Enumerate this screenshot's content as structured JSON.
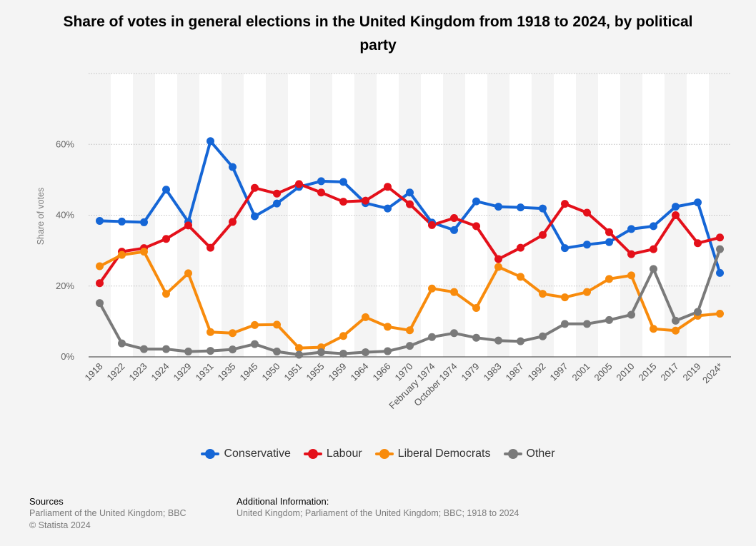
{
  "title": "Share of votes in general elections in the United Kingdom from 1918 to 2024, by political party",
  "footer": {
    "sources_heading": "Sources",
    "sources_line1": "Parliament of the United Kingdom; BBC",
    "sources_line2": "© Statista 2024",
    "additional_heading": "Additional Information:",
    "additional_text": "United Kingdom; Parliament of the United Kingdom; BBC; 1918 to 2024"
  },
  "chart_data": {
    "type": "line",
    "ylabel": "Share of votes",
    "yticks": [
      "0%",
      "20%",
      "40%",
      "60%"
    ],
    "ylim": [
      0,
      80
    ],
    "grid": true,
    "legend_position": "bottom",
    "categories": [
      "1918",
      "1922",
      "1923",
      "1924",
      "1929",
      "1931",
      "1935",
      "1945",
      "1950",
      "1951",
      "1955",
      "1959",
      "1964",
      "1966",
      "1970",
      "February 1974",
      "October 1974",
      "1979",
      "1983",
      "1987",
      "1992",
      "1997",
      "2001",
      "2005",
      "2010",
      "2015",
      "2017",
      "2019",
      "2024*"
    ],
    "series": [
      {
        "name": "Conservative",
        "color": "#1566d6",
        "values": [
          38.4,
          38.2,
          38.0,
          47.2,
          38.1,
          60.9,
          53.6,
          39.7,
          43.3,
          48.0,
          49.6,
          49.4,
          43.4,
          41.9,
          46.4,
          37.9,
          35.8,
          43.9,
          42.4,
          42.2,
          41.9,
          30.7,
          31.7,
          32.4,
          36.1,
          36.9,
          42.4,
          43.6,
          23.7
        ]
      },
      {
        "name": "Labour",
        "color": "#e4101a",
        "values": [
          20.8,
          29.7,
          30.7,
          33.3,
          37.1,
          30.8,
          38.1,
          47.7,
          46.1,
          48.8,
          46.4,
          43.8,
          44.1,
          48.0,
          43.1,
          37.2,
          39.2,
          36.9,
          27.6,
          30.8,
          34.4,
          43.2,
          40.7,
          35.2,
          29.0,
          30.4,
          40.0,
          32.1,
          33.7
        ]
      },
      {
        "name": "Liberal Democrats",
        "color": "#f88b0c",
        "values": [
          25.6,
          28.8,
          29.7,
          17.8,
          23.6,
          7.0,
          6.7,
          9.0,
          9.1,
          2.5,
          2.7,
          5.9,
          11.2,
          8.5,
          7.5,
          19.3,
          18.3,
          13.8,
          25.4,
          22.6,
          17.8,
          16.8,
          18.3,
          22.0,
          23.0,
          7.9,
          7.4,
          11.6,
          12.2
        ]
      },
      {
        "name": "Other",
        "color": "#7a7a7a",
        "values": [
          15.2,
          3.8,
          2.2,
          2.2,
          1.5,
          1.7,
          2.1,
          3.6,
          1.5,
          0.6,
          1.3,
          0.9,
          1.3,
          1.6,
          3.1,
          5.6,
          6.7,
          5.4,
          4.6,
          4.4,
          5.8,
          9.3,
          9.3,
          10.4,
          11.9,
          24.8,
          10.2,
          12.7,
          30.4
        ]
      }
    ]
  }
}
